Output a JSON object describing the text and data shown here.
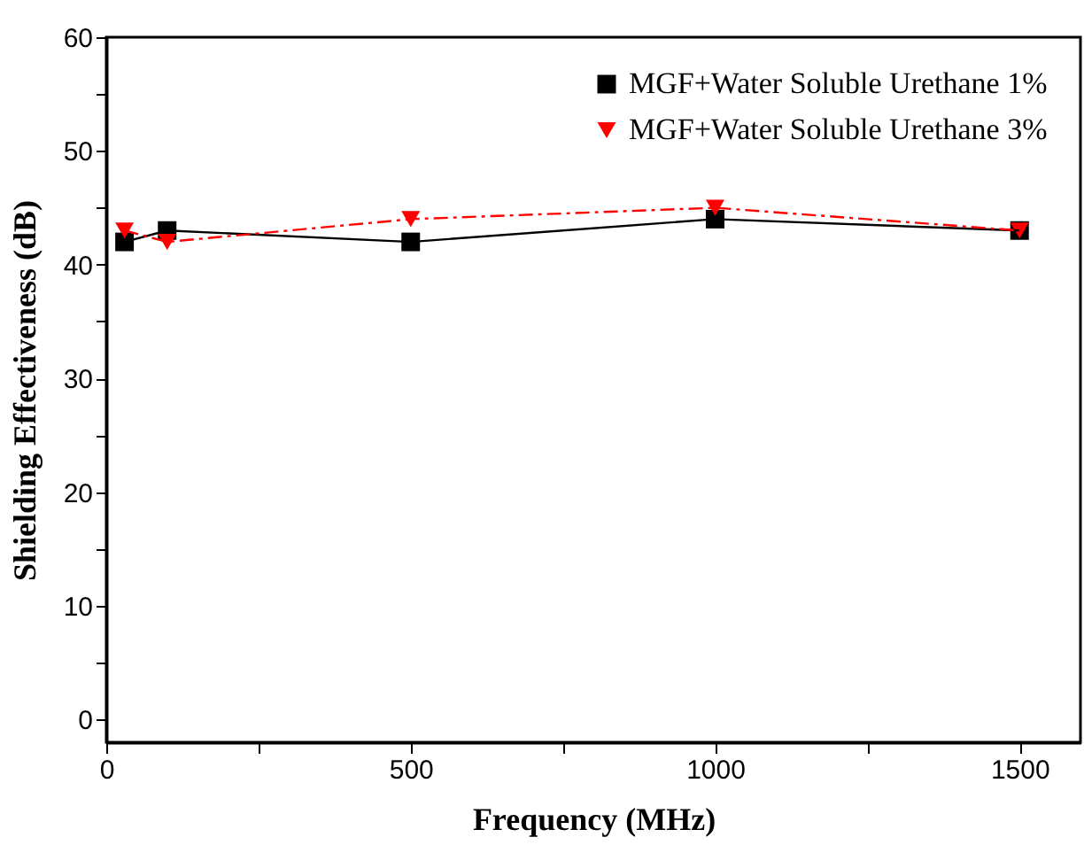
{
  "chart_data": {
    "type": "line",
    "xlabel": "Frequency (MHz)",
    "ylabel": "Shielding Effectiveness (dB)",
    "x": [
      30,
      100,
      500,
      1000,
      1500
    ],
    "series": [
      {
        "name": "MGF+Water Soluble Urethane 1%",
        "color": "#000000",
        "values": [
          42,
          43,
          42,
          44,
          43
        ],
        "marker": "square",
        "line_style": "solid"
      },
      {
        "name": "MGF+Water Soluble Urethane 3%",
        "color": "#ff0000",
        "values": [
          43,
          42,
          44,
          45,
          43
        ],
        "marker": "triangle-down",
        "line_style": "dashdot"
      }
    ],
    "xlim": [
      0,
      1600
    ],
    "xticks": [
      0,
      {
        "value": 250,
        "label": null
      },
      500,
      {
        "value": 750,
        "label": null
      },
      1000,
      {
        "value": 1250,
        "label": null
      },
      1500
    ],
    "ylim": [
      -2,
      60
    ],
    "yticks": [
      0,
      {
        "value": 5,
        "label": null
      },
      10,
      {
        "value": 15,
        "label": null
      },
      20,
      {
        "value": 25,
        "label": null
      },
      30,
      {
        "value": 35,
        "label": null
      },
      40,
      {
        "value": 45,
        "label": null
      },
      50,
      {
        "value": 55,
        "label": null
      },
      60
    ],
    "grid": false,
    "legend": "top right"
  }
}
